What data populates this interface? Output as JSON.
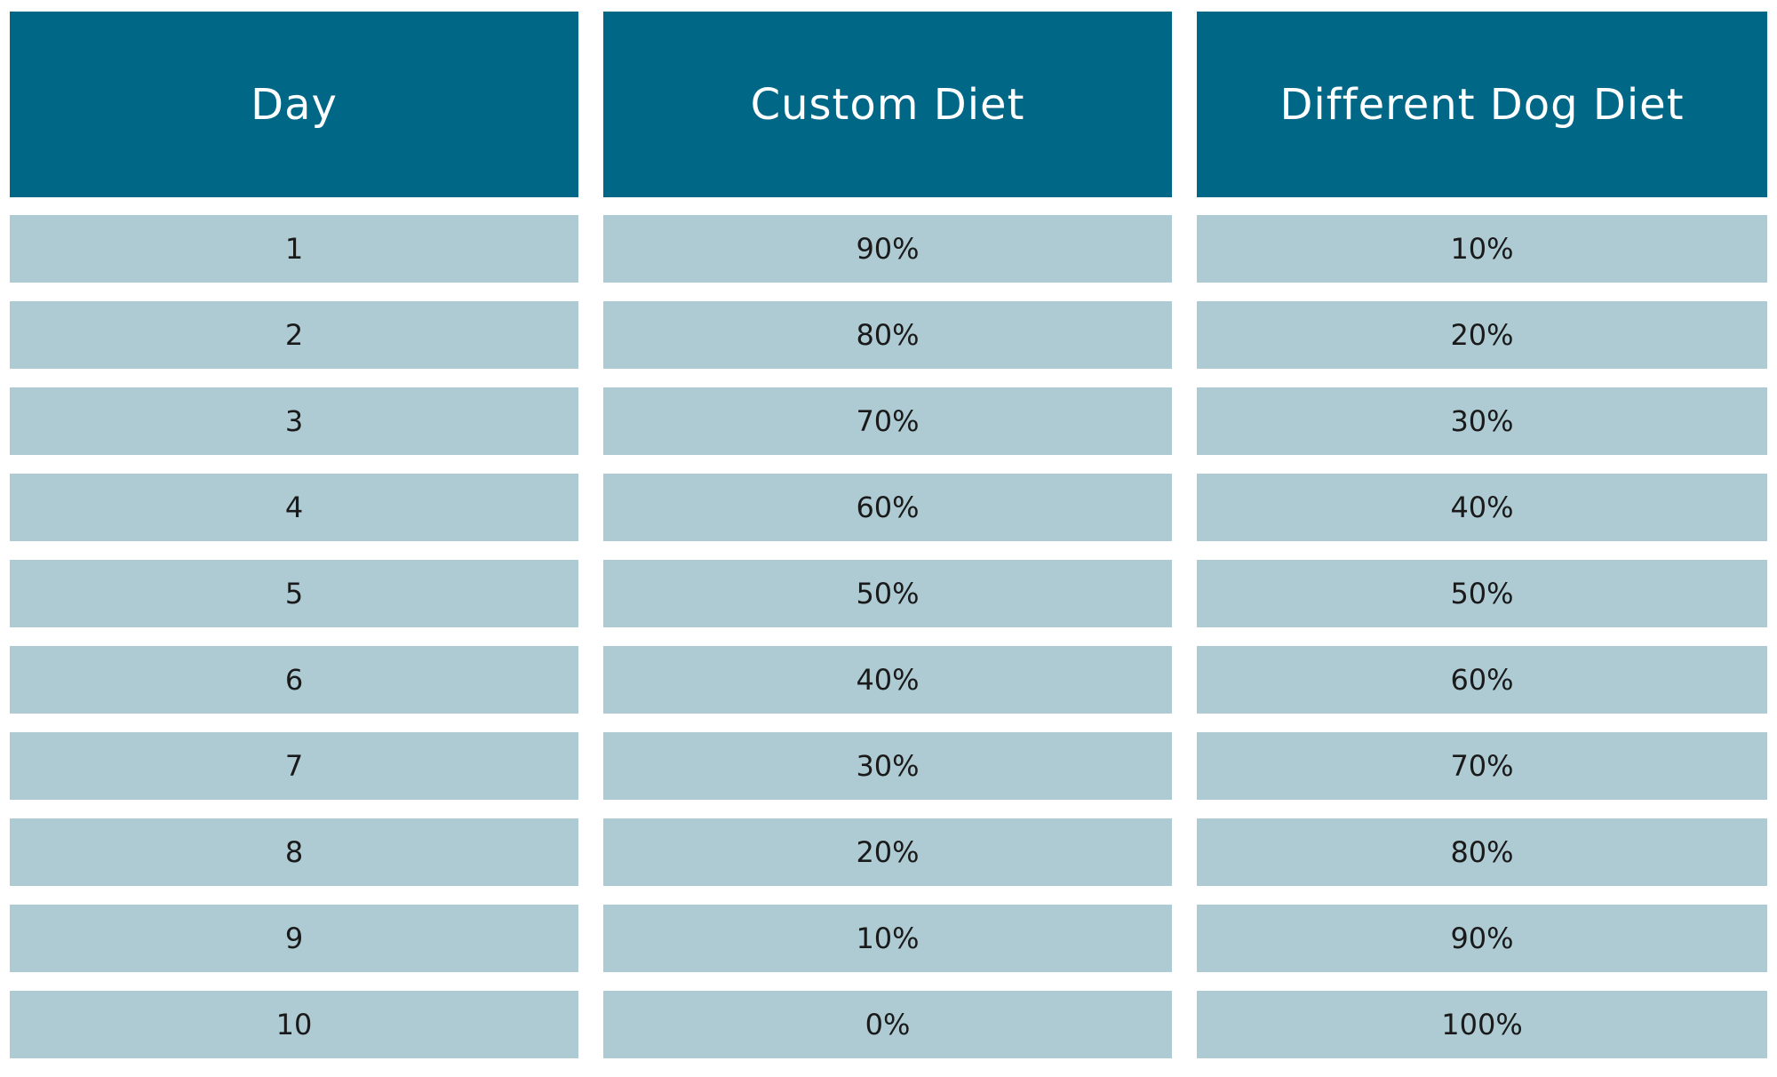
{
  "table": {
    "headers": [
      "Day",
      "Custom Diet",
      "Different Dog Diet"
    ],
    "rows": [
      [
        "1",
        "90%",
        "10%"
      ],
      [
        "2",
        "80%",
        "20%"
      ],
      [
        "3",
        "70%",
        "30%"
      ],
      [
        "4",
        "60%",
        "40%"
      ],
      [
        "5",
        "50%",
        "50%"
      ],
      [
        "6",
        "40%",
        "60%"
      ],
      [
        "7",
        "30%",
        "70%"
      ],
      [
        "8",
        "20%",
        "80%"
      ],
      [
        "9",
        "10%",
        "90%"
      ],
      [
        "10",
        "0%",
        "100%"
      ]
    ]
  },
  "colors": {
    "header_background": "#006787",
    "header_text": "#ffffff",
    "row_background": "#aecbd4",
    "row_text": "#1a1a1a"
  }
}
